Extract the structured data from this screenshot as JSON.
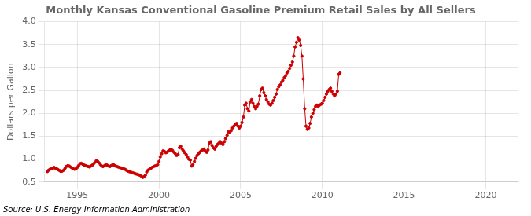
{
  "chart_data": {
    "type": "line",
    "title": "Monthly Kansas Conventional Gasoline Premium Retail Sales by All Sellers",
    "ylabel": "Dollars per Gallon",
    "annotation": "Source: U.S. Energy Information Administration",
    "color": "#cc0000",
    "marker": "o",
    "grid": true,
    "xlim": [
      1993.0,
      2022.0
    ],
    "ylim": [
      0.5,
      4.0
    ],
    "xticks": [
      1995,
      2000,
      2005,
      2010,
      2015,
      2020
    ],
    "yticks": [
      0.5,
      {
        "value": 1.0,
        "label": "1.0"
      },
      1.5,
      {
        "value": 2.0,
        "label": "2.0"
      },
      2.5,
      {
        "value": 3.0,
        "label": "3.0"
      },
      3.5,
      {
        "value": 4.0,
        "label": "4.0"
      }
    ],
    "x": [
      1993.17,
      1993.25,
      1993.33,
      1993.42,
      1993.5,
      1993.58,
      1993.67,
      1993.75,
      1993.83,
      1993.92,
      1994.0,
      1994.08,
      1994.17,
      1994.25,
      1994.33,
      1994.42,
      1994.5,
      1994.58,
      1994.67,
      1994.75,
      1994.83,
      1994.92,
      1995.0,
      1995.08,
      1995.17,
      1995.25,
      1995.33,
      1995.42,
      1995.5,
      1995.58,
      1995.67,
      1995.75,
      1995.83,
      1995.92,
      1996.0,
      1996.08,
      1996.17,
      1996.25,
      1996.33,
      1996.42,
      1996.5,
      1996.58,
      1996.67,
      1996.75,
      1996.83,
      1996.92,
      1997.0,
      1997.08,
      1997.17,
      1997.25,
      1997.33,
      1997.42,
      1997.5,
      1997.58,
      1997.67,
      1997.75,
      1997.83,
      1997.92,
      1998.0,
      1998.08,
      1998.17,
      1998.25,
      1998.33,
      1998.42,
      1998.5,
      1998.58,
      1998.67,
      1998.75,
      1998.83,
      1998.92,
      1999.0,
      1999.08,
      1999.17,
      1999.25,
      1999.33,
      1999.42,
      1999.5,
      1999.58,
      1999.67,
      1999.75,
      1999.83,
      1999.92,
      2000.0,
      2000.08,
      2000.17,
      2000.25,
      2000.33,
      2000.42,
      2000.5,
      2000.58,
      2000.67,
      2000.75,
      2000.83,
      2000.92,
      2001.0,
      2001.08,
      2001.17,
      2001.25,
      2001.33,
      2001.42,
      2001.5,
      2001.58,
      2001.67,
      2001.75,
      2001.83,
      2001.92,
      2002.0,
      2002.08,
      2002.17,
      2002.25,
      2002.33,
      2002.42,
      2002.5,
      2002.58,
      2002.67,
      2002.75,
      2002.83,
      2002.92,
      2003.0,
      2003.08,
      2003.17,
      2003.25,
      2003.33,
      2003.42,
      2003.5,
      2003.58,
      2003.67,
      2003.75,
      2003.83,
      2003.92,
      2004.0,
      2004.08,
      2004.17,
      2004.25,
      2004.33,
      2004.42,
      2004.5,
      2004.58,
      2004.67,
      2004.75,
      2004.83,
      2004.92,
      2005.0,
      2005.08,
      2005.17,
      2005.25,
      2005.33,
      2005.42,
      2005.5,
      2005.58,
      2005.67,
      2005.75,
      2005.83,
      2005.92,
      2006.0,
      2006.08,
      2006.17,
      2006.25,
      2006.33,
      2006.42,
      2006.5,
      2006.58,
      2006.67,
      2006.75,
      2006.83,
      2006.92,
      2007.0,
      2007.08,
      2007.17,
      2007.25,
      2007.33,
      2007.42,
      2007.5,
      2007.58,
      2007.67,
      2007.75,
      2007.83,
      2007.92,
      2008.0,
      2008.08,
      2008.17,
      2008.25,
      2008.33,
      2008.42,
      2008.5,
      2008.58,
      2008.67,
      2008.75,
      2008.83,
      2008.92,
      2009.0,
      2009.08,
      2009.17,
      2009.25,
      2009.33,
      2009.42,
      2009.5,
      2009.58,
      2009.67,
      2009.75,
      2009.83,
      2009.92,
      2010.0,
      2010.08,
      2010.17,
      2010.25,
      2010.33,
      2010.42,
      2010.5,
      2010.58,
      2010.67,
      2010.75,
      2010.83,
      2010.92,
      2011.0,
      2011.08
    ],
    "values": [
      0.73,
      0.76,
      0.78,
      0.79,
      0.8,
      0.82,
      0.8,
      0.79,
      0.77,
      0.75,
      0.73,
      0.74,
      0.76,
      0.8,
      0.84,
      0.86,
      0.85,
      0.83,
      0.81,
      0.79,
      0.78,
      0.79,
      0.82,
      0.86,
      0.9,
      0.91,
      0.89,
      0.87,
      0.86,
      0.85,
      0.84,
      0.83,
      0.85,
      0.87,
      0.9,
      0.93,
      0.97,
      0.95,
      0.92,
      0.88,
      0.85,
      0.84,
      0.86,
      0.88,
      0.87,
      0.85,
      0.84,
      0.86,
      0.88,
      0.87,
      0.85,
      0.84,
      0.83,
      0.82,
      0.81,
      0.8,
      0.79,
      0.78,
      0.76,
      0.74,
      0.73,
      0.72,
      0.71,
      0.7,
      0.69,
      0.68,
      0.67,
      0.66,
      0.65,
      0.63,
      0.6,
      0.62,
      0.65,
      0.72,
      0.76,
      0.78,
      0.8,
      0.82,
      0.84,
      0.85,
      0.86,
      0.88,
      0.95,
      1.05,
      1.12,
      1.18,
      1.17,
      1.14,
      1.15,
      1.18,
      1.2,
      1.21,
      1.19,
      1.15,
      1.12,
      1.08,
      1.1,
      1.25,
      1.28,
      1.22,
      1.18,
      1.14,
      1.1,
      1.05,
      1.0,
      0.98,
      0.85,
      0.88,
      0.95,
      1.02,
      1.08,
      1.12,
      1.15,
      1.18,
      1.2,
      1.22,
      1.18,
      1.15,
      1.2,
      1.35,
      1.38,
      1.3,
      1.25,
      1.22,
      1.28,
      1.32,
      1.35,
      1.38,
      1.35,
      1.32,
      1.38,
      1.45,
      1.52,
      1.6,
      1.58,
      1.62,
      1.68,
      1.72,
      1.75,
      1.78,
      1.72,
      1.68,
      1.72,
      1.8,
      1.92,
      2.18,
      2.22,
      2.1,
      2.05,
      2.25,
      2.3,
      2.22,
      2.15,
      2.1,
      2.15,
      2.2,
      2.38,
      2.52,
      2.55,
      2.45,
      2.38,
      2.3,
      2.25,
      2.2,
      2.18,
      2.22,
      2.28,
      2.35,
      2.42,
      2.52,
      2.58,
      2.62,
      2.68,
      2.72,
      2.78,
      2.82,
      2.88,
      2.92,
      2.98,
      3.05,
      3.12,
      3.25,
      3.45,
      3.55,
      3.65,
      3.6,
      3.48,
      3.25,
      2.75,
      2.1,
      1.72,
      1.65,
      1.68,
      1.78,
      1.92,
      2.0,
      2.08,
      2.15,
      2.18,
      2.15,
      2.18,
      2.2,
      2.22,
      2.28,
      2.35,
      2.42,
      2.48,
      2.52,
      2.55,
      2.48,
      2.42,
      2.38,
      2.42,
      2.48,
      2.85,
      2.88
    ]
  }
}
